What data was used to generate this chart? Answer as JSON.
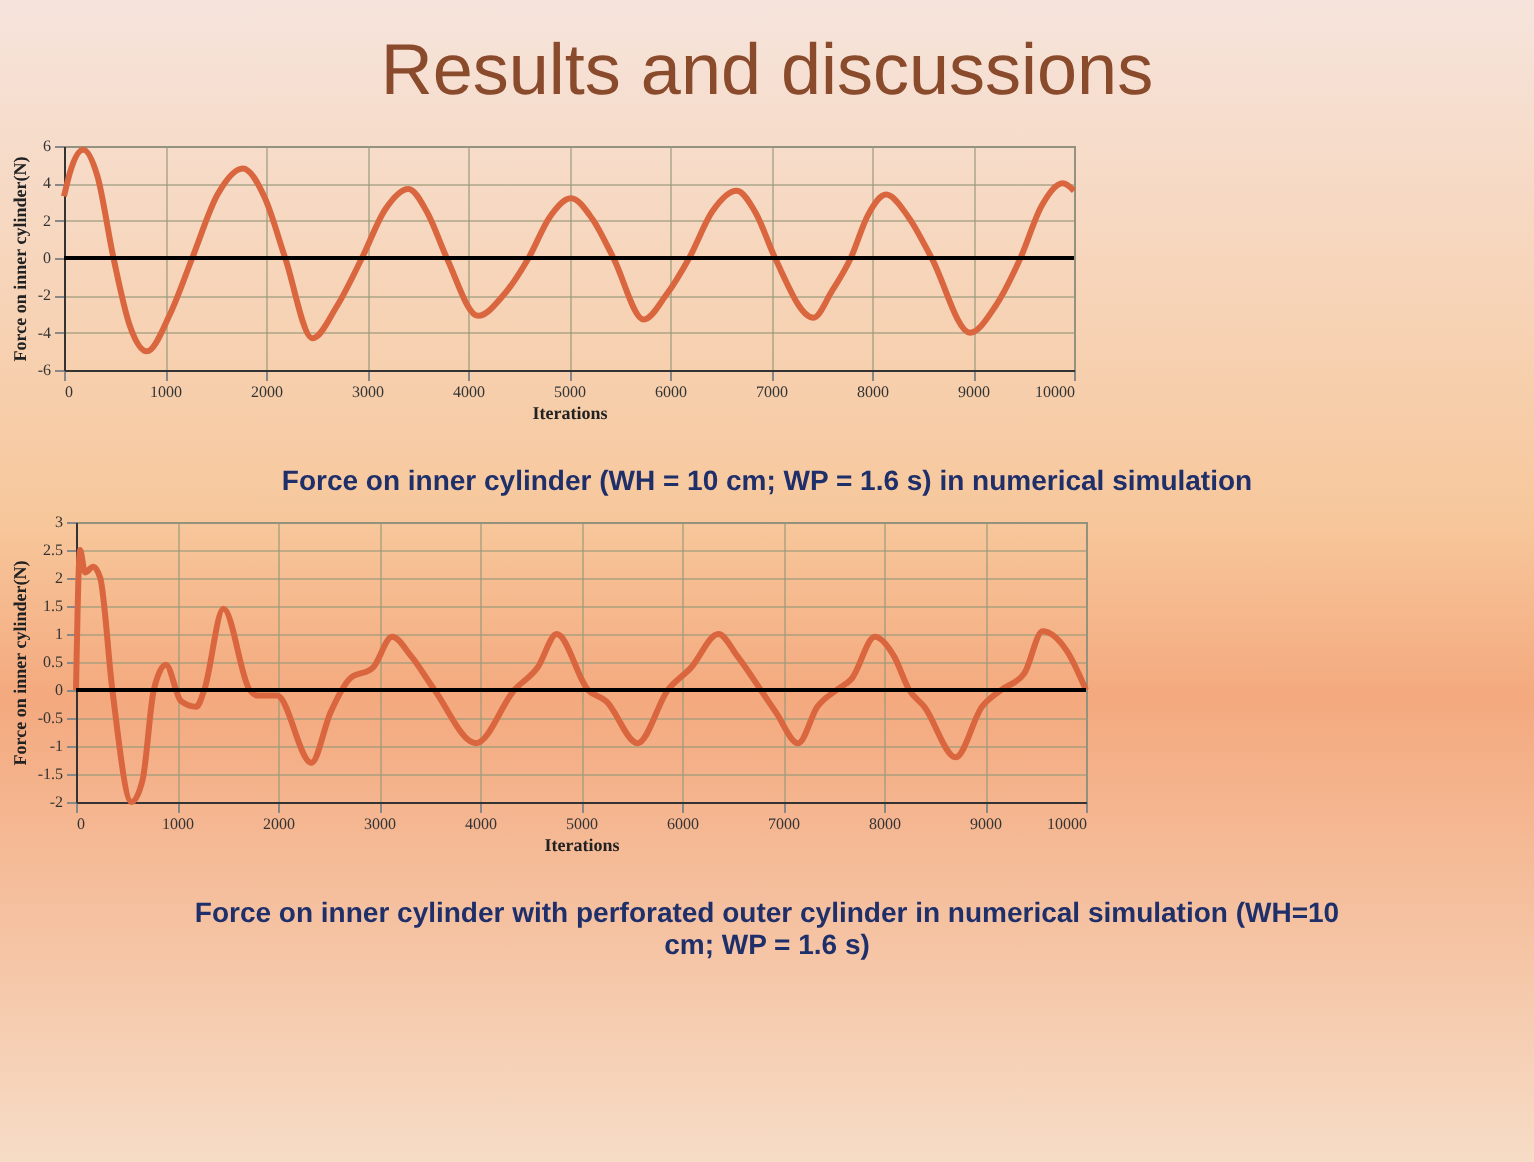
{
  "chart_data": [
    {
      "type": "line",
      "title": "Results and discussions",
      "xlabel": "Iterations",
      "ylabel": "Force on inner cylinder(N)",
      "annotations": [
        "Force on inner cylinder (WH = 10 cm; WP = 1.6 s) in numerical simulation"
      ],
      "xlim": [
        0,
        10000
      ],
      "xticks": [
        0,
        1000,
        2000,
        3000,
        4000,
        5000,
        6000,
        7000,
        8000,
        9000,
        10000
      ],
      "ylim": [
        -6,
        6
      ],
      "yticks": [
        -6,
        -4,
        -2,
        0,
        2,
        4,
        6
      ],
      "grid": true,
      "ref_lines": [
        {
          "axis": "y",
          "value": 0,
          "color": "#000000"
        }
      ],
      "series": [
        {
          "color": "#d9663f",
          "x": [
            0,
            60,
            190,
            330,
            490,
            650,
            820,
            1050,
            1270,
            1520,
            1770,
            1990,
            2190,
            2460,
            2700,
            2950,
            3180,
            3410,
            3600,
            3790,
            4100,
            4350,
            4600,
            4810,
            5020,
            5230,
            5440,
            5740,
            5960,
            6190,
            6420,
            6660,
            6850,
            7040,
            7420,
            7600,
            7790,
            7960,
            8140,
            8360,
            8590,
            8970,
            9220,
            9470,
            9680,
            9890,
            10000
          ],
          "values": [
            3.3,
            4.6,
            5.8,
            4.4,
            0,
            -3.6,
            -5,
            -3,
            0,
            3.4,
            4.8,
            3.2,
            0,
            -4.3,
            -2.6,
            0,
            2.6,
            3.7,
            2.4,
            0,
            -3.1,
            -2,
            0,
            2.2,
            3.2,
            2.1,
            0,
            -3.3,
            -2,
            0,
            2.5,
            3.6,
            2.4,
            0,
            -3.2,
            -1.8,
            0,
            2.3,
            3.4,
            2.2,
            0,
            -4,
            -2.6,
            0,
            2.8,
            4,
            3.6
          ]
        }
      ]
    },
    {
      "type": "line",
      "xlabel": "Iterations",
      "ylabel": "Force on inner cylinder(N)",
      "annotations": [
        "Force on inner cylinder with perforated outer cylinder in numerical simulation (WH=10 cm; WP = 1.6 s)"
      ],
      "xlim": [
        0,
        10000
      ],
      "xticks": [
        0,
        1000,
        2000,
        3000,
        4000,
        5000,
        6000,
        7000,
        8000,
        9000,
        10000
      ],
      "ylim": [
        -2,
        3
      ],
      "yticks": [
        -2,
        -1.5,
        -1,
        -0.5,
        0,
        0.5,
        1,
        1.5,
        2,
        2.5,
        3
      ],
      "grid": true,
      "ref_lines": [
        {
          "axis": "y",
          "value": 0,
          "color": "#000000"
        }
      ],
      "series": [
        {
          "color": "#d9663f",
          "x": [
            0,
            40,
            90,
            170,
            240,
            360,
            550,
            660,
            770,
            890,
            1040,
            1190,
            1270,
            1460,
            1720,
            1800,
            1990,
            2330,
            2520,
            2710,
            2940,
            3130,
            3320,
            3550,
            3960,
            4340,
            4570,
            4760,
            5070,
            5250,
            5560,
            5860,
            6090,
            6360,
            6550,
            6780,
            6930,
            7150,
            7340,
            7530,
            7680,
            7910,
            8100,
            8250,
            8400,
            8710,
            8970,
            9160,
            9390,
            9570,
            9810,
            10000
          ],
          "values": [
            0,
            2.5,
            2.1,
            2.2,
            2,
            0,
            -2,
            -1.6,
            0,
            0.45,
            -0.2,
            -0.3,
            0,
            1.45,
            0,
            -0.1,
            -0.1,
            -1.3,
            -0.4,
            0.2,
            0.4,
            0.95,
            0.6,
            0,
            -0.95,
            0,
            0.4,
            1,
            0,
            -0.2,
            -0.95,
            0,
            0.4,
            1,
            0.6,
            0,
            -0.4,
            -0.95,
            -0.3,
            0,
            0.2,
            0.95,
            0.6,
            0,
            -0.3,
            -1.2,
            -0.3,
            0,
            0.3,
            1.05,
            0.7,
            0
          ]
        }
      ]
    }
  ]
}
